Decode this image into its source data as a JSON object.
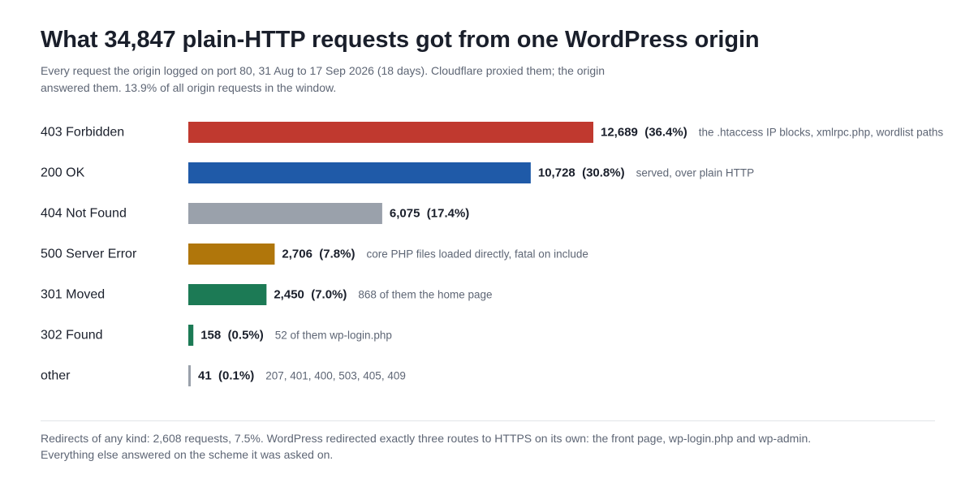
{
  "header": {
    "title": "What 34,847 plain-HTTP requests got from one WordPress origin",
    "subtitle": "Every request the origin logged on port 80, 31 Aug to 17 Sep 2026 (18 days). Cloudflare proxied them; the origin answered them. 13.9% of all origin requests in the window."
  },
  "chart_data": {
    "type": "bar",
    "orientation": "horizontal",
    "title": "What 34,847 plain-HTTP requests got from one WordPress origin",
    "xlabel": "",
    "ylabel": "",
    "grid": false,
    "xlim": [
      0,
      12689
    ],
    "categories": [
      "403 Forbidden",
      "200 OK",
      "404 Not Found",
      "500 Server Error",
      "301 Moved",
      "302 Found",
      "other"
    ],
    "values": [
      12689,
      10728,
      6075,
      2706,
      2450,
      158,
      41
    ],
    "value_labels": [
      "12,689",
      "10,728",
      "6,075",
      "2,706",
      "2,450",
      "158",
      "41"
    ],
    "percent_labels": [
      "(36.4%)",
      "(30.8%)",
      "(17.4%)",
      "(7.8%)",
      "(7.0%)",
      "(0.5%)",
      "(0.1%)"
    ],
    "annotations": [
      "the .htaccess IP blocks, xmlrpc.php, wordlist paths",
      "served, over plain HTTP",
      "",
      "core PHP files loaded directly, fatal on include",
      "868 of them the home page",
      "52 of them wp-login.php",
      "207, 401, 400, 503, 405, 409"
    ],
    "colors": [
      "#c0392f",
      "#1f5aa8",
      "#9aa1ab",
      "#b0760b",
      "#1c7a55",
      "#1c7a55",
      "#9aa1ab"
    ]
  },
  "footer": {
    "note_line1": "Redirects of any kind: 2,608 requests, 7.5%. WordPress redirected exactly three routes to HTTPS on its own: the front page, wp-login.php and wp-admin.",
    "note_line2": "Everything else answered on the scheme it was asked on."
  }
}
